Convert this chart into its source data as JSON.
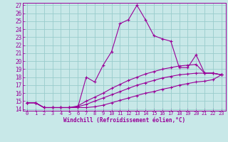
{
  "title": "",
  "xlabel": "Windchill (Refroidissement éolien,°C)",
  "ylabel": "",
  "background_color": "#c8e8e8",
  "line_color": "#990099",
  "grid_color": "#99cccc",
  "xlim": [
    -0.5,
    23.5
  ],
  "ylim": [
    13.8,
    27.3
  ],
  "xticks": [
    0,
    1,
    2,
    3,
    4,
    5,
    6,
    7,
    8,
    9,
    10,
    11,
    12,
    13,
    14,
    15,
    16,
    17,
    18,
    19,
    20,
    21,
    22,
    23
  ],
  "yticks": [
    14,
    15,
    16,
    17,
    18,
    19,
    20,
    21,
    22,
    23,
    24,
    25,
    26,
    27
  ],
  "lines": [
    {
      "x": [
        0,
        1,
        2,
        3,
        4,
        5,
        6,
        7,
        8,
        9,
        10,
        11,
        12,
        13,
        14,
        15,
        16,
        17,
        18,
        19,
        20,
        21,
        22,
        23
      ],
      "y": [
        14.8,
        14.8,
        14.2,
        14.2,
        14.2,
        14.2,
        14.2,
        18.0,
        17.4,
        19.5,
        21.2,
        24.7,
        25.2,
        27.0,
        25.2,
        23.2,
        22.8,
        22.5,
        19.2,
        19.2,
        20.8,
        18.5,
        18.5,
        18.3
      ]
    },
    {
      "x": [
        0,
        1,
        2,
        3,
        4,
        5,
        6,
        7,
        8,
        9,
        10,
        11,
        12,
        13,
        14,
        15,
        16,
        17,
        18,
        19,
        20,
        21,
        22,
        23
      ],
      "y": [
        14.8,
        14.8,
        14.2,
        14.2,
        14.2,
        14.2,
        14.4,
        15.0,
        15.5,
        16.0,
        16.6,
        17.1,
        17.6,
        18.0,
        18.4,
        18.7,
        19.0,
        19.2,
        19.4,
        19.5,
        19.6,
        18.5,
        18.5,
        18.3
      ]
    },
    {
      "x": [
        0,
        1,
        2,
        3,
        4,
        5,
        6,
        7,
        8,
        9,
        10,
        11,
        12,
        13,
        14,
        15,
        16,
        17,
        18,
        19,
        20,
        21,
        22,
        23
      ],
      "y": [
        14.8,
        14.8,
        14.2,
        14.2,
        14.2,
        14.2,
        14.3,
        14.6,
        15.0,
        15.4,
        15.8,
        16.2,
        16.6,
        17.0,
        17.3,
        17.6,
        17.9,
        18.1,
        18.3,
        18.4,
        18.5,
        18.5,
        18.5,
        18.3
      ]
    },
    {
      "x": [
        0,
        1,
        2,
        3,
        4,
        5,
        6,
        7,
        8,
        9,
        10,
        11,
        12,
        13,
        14,
        15,
        16,
        17,
        18,
        19,
        20,
        21,
        22,
        23
      ],
      "y": [
        14.8,
        14.8,
        14.2,
        14.2,
        14.2,
        14.2,
        14.2,
        14.2,
        14.3,
        14.5,
        14.8,
        15.1,
        15.4,
        15.7,
        16.0,
        16.2,
        16.5,
        16.7,
        17.0,
        17.2,
        17.4,
        17.5,
        17.7,
        18.3
      ]
    }
  ]
}
